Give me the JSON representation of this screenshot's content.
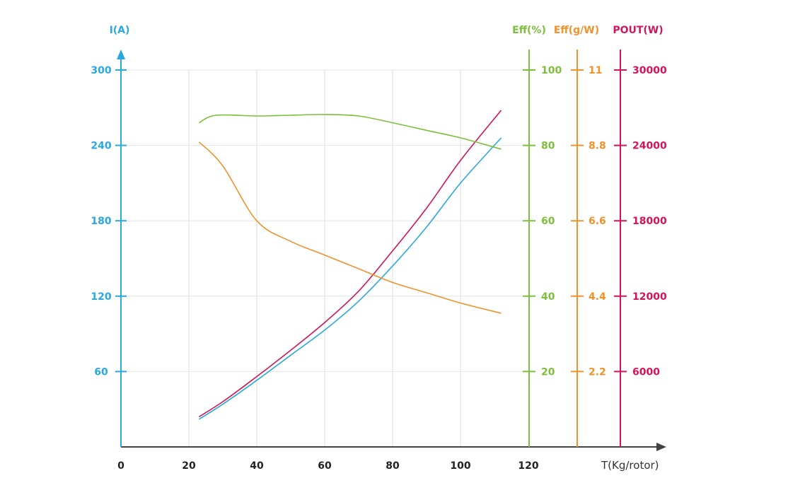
{
  "chart_data": {
    "type": "line",
    "xlabel": "T(Kg/rotor)",
    "x_ticks": [
      "0",
      "20",
      "40",
      "60",
      "80",
      "100",
      "120"
    ],
    "xlim": [
      0,
      120
    ],
    "grid": true,
    "axes": {
      "current": {
        "label": "I(A)",
        "ticks": [
          "300",
          "240",
          "180",
          "120",
          "60"
        ],
        "tick_values": [
          300,
          240,
          180,
          120,
          60
        ],
        "ylim": [
          0,
          300
        ],
        "color": "#29a8e0"
      },
      "eff_pct": {
        "label": "Eff(%)",
        "ticks": [
          "100",
          "80",
          "60",
          "40",
          "20"
        ],
        "tick_values": [
          100,
          80,
          60,
          40,
          20
        ],
        "ylim": [
          0,
          100
        ],
        "color": "#7cbf3a"
      },
      "eff_gw": {
        "label": "Eff(g/W)",
        "ticks": [
          "11",
          "8.8",
          "6.6",
          "4.4",
          "2.2"
        ],
        "tick_values": [
          11,
          8.8,
          6.6,
          4.4,
          2.2
        ],
        "ylim": [
          0,
          11
        ],
        "color": "#f0912a"
      },
      "pout": {
        "label": "POUT(W)",
        "ticks": [
          "30000",
          "24000",
          "18000",
          "12000",
          "6000"
        ],
        "tick_values": [
          30000,
          24000,
          18000,
          12000,
          6000
        ],
        "ylim": [
          0,
          30000
        ],
        "color": "#d4145a"
      }
    },
    "series": [
      {
        "axis": "current",
        "color": "#29a8e0",
        "x": [
          23,
          30,
          40,
          50,
          60,
          70,
          80,
          90,
          100,
          112
        ],
        "y": [
          22,
          34,
          53,
          73,
          93,
          116,
          144,
          175,
          210,
          246
        ]
      },
      {
        "axis": "pout",
        "color": "#d4145a",
        "x": [
          23,
          30,
          40,
          50,
          60,
          70,
          80,
          90,
          100,
          112
        ],
        "y": [
          2400,
          3600,
          5600,
          7700,
          9900,
          12400,
          15600,
          19000,
          22800,
          26800
        ]
      },
      {
        "axis": "eff_pct",
        "color": "#7cbf3a",
        "x": [
          23,
          28,
          40,
          50,
          60,
          70,
          80,
          90,
          100,
          112
        ],
        "y": [
          86,
          88,
          87.8,
          88,
          88.2,
          87.8,
          86,
          84,
          82,
          79
        ]
      },
      {
        "axis": "eff_gw",
        "color": "#f0912a",
        "x": [
          23,
          30,
          40,
          50,
          60,
          70,
          80,
          90,
          100,
          112
        ],
        "y": [
          8.9,
          8.2,
          6.6,
          6.0,
          5.6,
          5.2,
          4.8,
          4.5,
          4.2,
          3.9
        ]
      }
    ]
  }
}
